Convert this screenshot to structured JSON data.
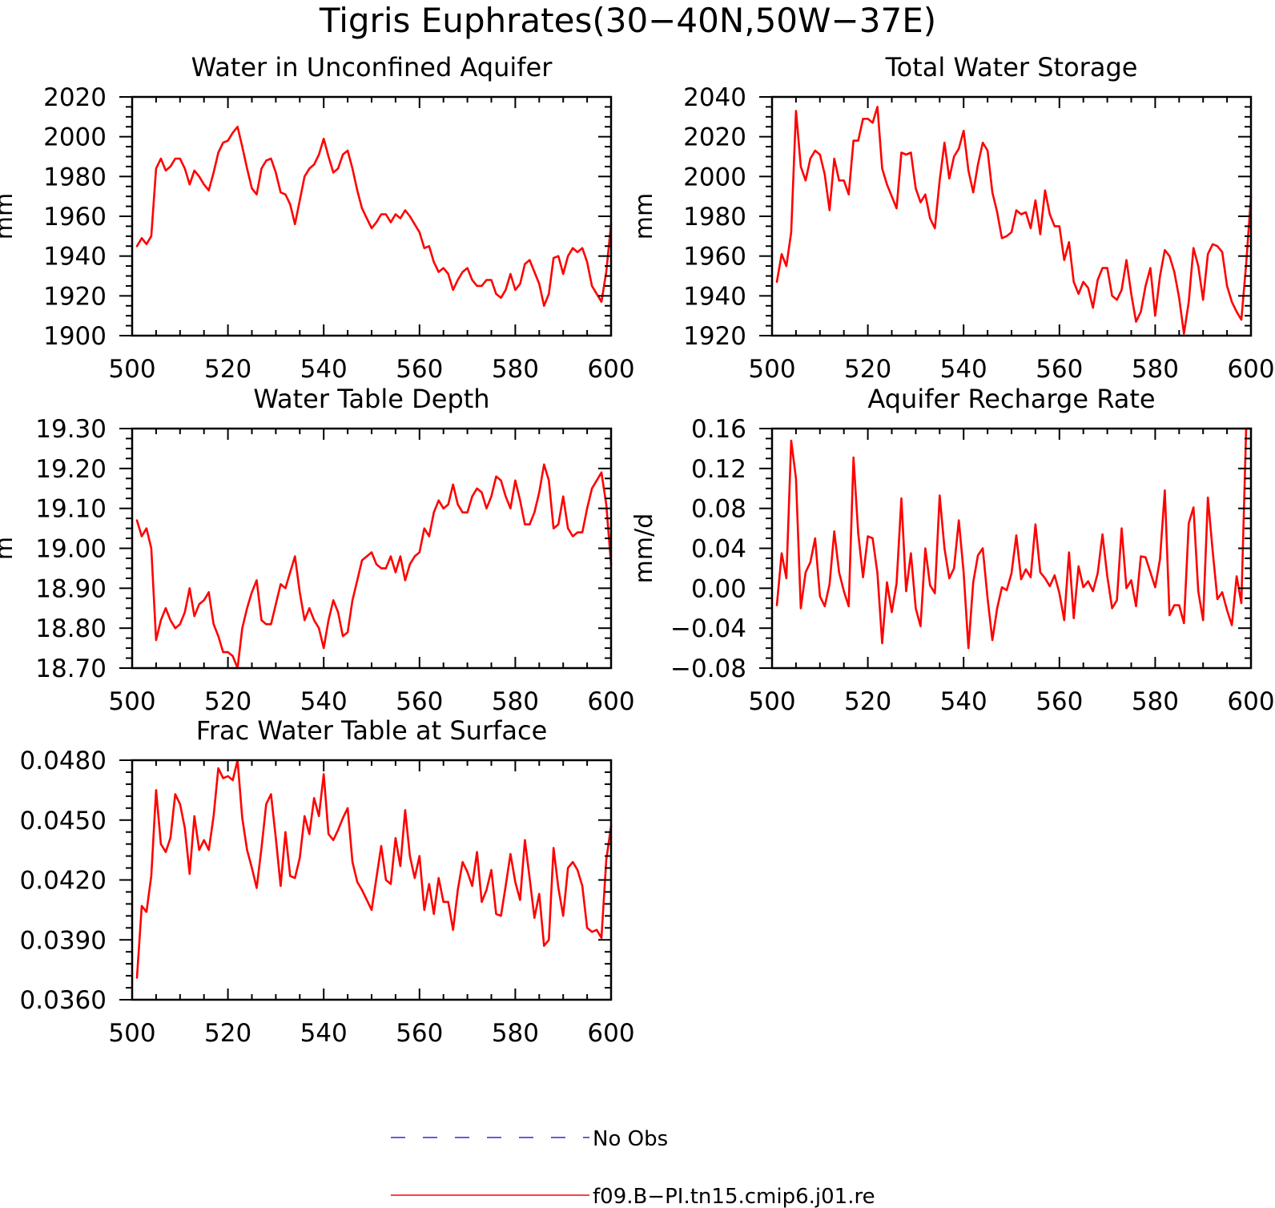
{
  "figure": {
    "title": "Tigris Euphrates(30−40N,50W−37E)"
  },
  "legend": {
    "placement": "bottom-center",
    "entries": [
      {
        "label": "No Obs",
        "color": "#2a2ad0",
        "style": "dashed"
      },
      {
        "label": "f09.B−PI.tn15.cmip6.j01.re",
        "color": "#ff0000",
        "style": "solid"
      }
    ]
  },
  "chart_data": [
    {
      "type": "line",
      "title": "Water in Unconfined Aquifer",
      "ylabel": "mm",
      "xlim": [
        500,
        600
      ],
      "ylim": [
        1900,
        2020
      ],
      "xticks": [
        500,
        520,
        540,
        560,
        580,
        600
      ],
      "xtick_labels": [
        "500",
        "520",
        "540",
        "560",
        "580",
        "600"
      ],
      "yticks": [
        1900,
        1920,
        1940,
        1960,
        1980,
        2000,
        2020
      ],
      "ytick_labels": [
        "1900",
        "1920",
        "1940",
        "1960",
        "1980",
        "2000",
        "2020"
      ],
      "yminor": 4,
      "color": "#ff0000",
      "x": [
        501,
        502,
        503,
        504,
        505,
        506,
        507,
        508,
        509,
        510,
        511,
        512,
        513,
        514,
        515,
        516,
        517,
        518,
        519,
        520,
        521,
        522,
        523,
        524,
        525,
        526,
        527,
        528,
        529,
        530,
        531,
        532,
        533,
        534,
        535,
        536,
        537,
        538,
        539,
        540,
        541,
        542,
        543,
        544,
        545,
        546,
        547,
        548,
        549,
        550,
        551,
        552,
        553,
        554,
        555,
        556,
        557,
        558,
        559,
        560,
        561,
        562,
        563,
        564,
        565,
        566,
        567,
        568,
        569,
        570,
        571,
        572,
        573,
        574,
        575,
        576,
        577,
        578,
        579,
        580,
        581,
        582,
        583,
        584,
        585,
        586,
        587,
        588,
        589,
        590,
        591,
        592,
        593,
        594,
        595,
        596,
        597,
        598,
        599,
        600
      ],
      "y": [
        1945,
        1949,
        1946,
        1950,
        1984,
        1989,
        1983,
        1985,
        1989,
        1989,
        1984,
        1976,
        1983,
        1980,
        1976,
        1973,
        1982,
        1992,
        1997,
        1998,
        2002,
        2005,
        1995,
        1984,
        1974,
        1971,
        1984,
        1988,
        1989,
        1982,
        1972,
        1971,
        1966,
        1956,
        1968,
        1980,
        1984,
        1986,
        1991,
        1999,
        1990,
        1982,
        1984,
        1991,
        1993,
        1984,
        1973,
        1964,
        1959,
        1954,
        1957,
        1961,
        1961,
        1957,
        1961,
        1959,
        1963,
        1960,
        1956,
        1952,
        1944,
        1945,
        1937,
        1932,
        1934,
        1931,
        1923,
        1928,
        1932,
        1934,
        1928,
        1925,
        1925,
        1928,
        1928,
        1921,
        1919,
        1923,
        1931,
        1923,
        1926,
        1936,
        1938,
        1932,
        1926,
        1915,
        1921,
        1939,
        1940,
        1931,
        1940,
        1944,
        1942,
        1944,
        1937,
        1925,
        1921,
        1917,
        1932,
        1956
      ]
    },
    {
      "type": "line",
      "title": "Total Water Storage",
      "ylabel": "mm",
      "xlim": [
        500,
        600
      ],
      "ylim": [
        1920,
        2040
      ],
      "xticks": [
        500,
        520,
        540,
        560,
        580,
        600
      ],
      "xtick_labels": [
        "500",
        "520",
        "540",
        "560",
        "580",
        "600"
      ],
      "yticks": [
        1920,
        1940,
        1960,
        1980,
        2000,
        2020,
        2040
      ],
      "ytick_labels": [
        "1920",
        "1940",
        "1960",
        "1980",
        "2000",
        "2020",
        "2040"
      ],
      "yminor": 4,
      "color": "#ff0000",
      "x": [
        501,
        502,
        503,
        504,
        505,
        506,
        507,
        508,
        509,
        510,
        511,
        512,
        513,
        514,
        515,
        516,
        517,
        518,
        519,
        520,
        521,
        522,
        523,
        524,
        525,
        526,
        527,
        528,
        529,
        530,
        531,
        532,
        533,
        534,
        535,
        536,
        537,
        538,
        539,
        540,
        541,
        542,
        543,
        544,
        545,
        546,
        547,
        548,
        549,
        550,
        551,
        552,
        553,
        554,
        555,
        556,
        557,
        558,
        559,
        560,
        561,
        562,
        563,
        564,
        565,
        566,
        567,
        568,
        569,
        570,
        571,
        572,
        573,
        574,
        575,
        576,
        577,
        578,
        579,
        580,
        581,
        582,
        583,
        584,
        585,
        586,
        587,
        588,
        589,
        590,
        591,
        592,
        593,
        594,
        595,
        596,
        597,
        598,
        599,
        600
      ],
      "y": [
        1947,
        1961,
        1955,
        1972,
        2033,
        2005,
        1998,
        2009,
        2013,
        2011,
        2001,
        1983,
        2009,
        1998,
        1998,
        1991,
        2018,
        2018,
        2029,
        2029,
        2027,
        2035,
        2004,
        1996,
        1990,
        1984,
        2012,
        2011,
        2012,
        1994,
        1987,
        1991,
        1979,
        1974,
        1998,
        2017,
        1999,
        2010,
        2014,
        2023,
        2003,
        1992,
        2006,
        2017,
        2013,
        1992,
        1982,
        1969,
        1970,
        1972,
        1983,
        1981,
        1982,
        1974,
        1988,
        1971,
        1993,
        1981,
        1975,
        1975,
        1958,
        1967,
        1947,
        1941,
        1947,
        1944,
        1934,
        1948,
        1954,
        1954,
        1940,
        1938,
        1943,
        1958,
        1941,
        1927,
        1932,
        1945,
        1954,
        1930,
        1950,
        1963,
        1960,
        1952,
        1939,
        1921,
        1937,
        1964,
        1955,
        1938,
        1961,
        1966,
        1965,
        1962,
        1945,
        1937,
        1932,
        1928,
        1956,
        1990
      ]
    },
    {
      "type": "line",
      "title": "Water Table Depth",
      "ylabel": "m",
      "xlim": [
        500,
        600
      ],
      "ylim": [
        18.7,
        19.3
      ],
      "xticks": [
        500,
        520,
        540,
        560,
        580,
        600
      ],
      "xtick_labels": [
        "500",
        "520",
        "540",
        "560",
        "580",
        "600"
      ],
      "yticks": [
        18.7,
        18.8,
        18.9,
        19.0,
        19.1,
        19.2,
        19.3
      ],
      "ytick_labels": [
        "18.70",
        "18.80",
        "18.90",
        "19.00",
        "19.10",
        "19.20",
        "19.30"
      ],
      "yminor": 4,
      "color": "#ff0000",
      "x": [
        501,
        502,
        503,
        504,
        505,
        506,
        507,
        508,
        509,
        510,
        511,
        512,
        513,
        514,
        515,
        516,
        517,
        518,
        519,
        520,
        521,
        522,
        523,
        524,
        525,
        526,
        527,
        528,
        529,
        530,
        531,
        532,
        533,
        534,
        535,
        536,
        537,
        538,
        539,
        540,
        541,
        542,
        543,
        544,
        545,
        546,
        547,
        548,
        549,
        550,
        551,
        552,
        553,
        554,
        555,
        556,
        557,
        558,
        559,
        560,
        561,
        562,
        563,
        564,
        565,
        566,
        567,
        568,
        569,
        570,
        571,
        572,
        573,
        574,
        575,
        576,
        577,
        578,
        579,
        580,
        581,
        582,
        583,
        584,
        585,
        586,
        587,
        588,
        589,
        590,
        591,
        592,
        593,
        594,
        595,
        596,
        597,
        598,
        599,
        600
      ],
      "y": [
        19.07,
        19.03,
        19.05,
        19.0,
        18.77,
        18.82,
        18.85,
        18.82,
        18.8,
        18.81,
        18.84,
        18.9,
        18.83,
        18.86,
        18.87,
        18.89,
        18.81,
        18.78,
        18.74,
        18.74,
        18.73,
        18.7,
        18.8,
        18.85,
        18.89,
        18.92,
        18.82,
        18.81,
        18.81,
        18.86,
        18.91,
        18.9,
        18.94,
        18.98,
        18.89,
        18.82,
        18.85,
        18.82,
        18.8,
        18.75,
        18.82,
        18.87,
        18.84,
        18.78,
        18.79,
        18.87,
        18.92,
        18.97,
        18.98,
        18.99,
        18.96,
        18.95,
        18.95,
        18.98,
        18.94,
        18.98,
        18.92,
        18.96,
        18.98,
        18.99,
        19.05,
        19.03,
        19.09,
        19.12,
        19.1,
        19.11,
        19.16,
        19.11,
        19.09,
        19.09,
        19.13,
        19.15,
        19.14,
        19.1,
        19.13,
        19.18,
        19.17,
        19.13,
        19.1,
        19.17,
        19.12,
        19.06,
        19.06,
        19.09,
        19.14,
        19.21,
        19.17,
        19.05,
        19.06,
        19.13,
        19.05,
        19.03,
        19.04,
        19.04,
        19.1,
        19.15,
        19.17,
        19.19,
        19.11,
        18.96
      ]
    },
    {
      "type": "line",
      "title": "Aquifer Recharge Rate",
      "ylabel": "mm/d",
      "xlim": [
        500,
        600
      ],
      "ylim": [
        -0.08,
        0.16
      ],
      "xticks": [
        500,
        520,
        540,
        560,
        580,
        600
      ],
      "xtick_labels": [
        "500",
        "520",
        "540",
        "560",
        "580",
        "600"
      ],
      "yticks": [
        -0.08,
        -0.04,
        0.0,
        0.04,
        0.08,
        0.12,
        0.16
      ],
      "ytick_labels": [
        "−0.08",
        "−0.04",
        "0.00",
        "0.04",
        "0.08",
        "0.12",
        "0.16"
      ],
      "yminor": 4,
      "color": "#ff0000",
      "x": [
        501,
        502,
        503,
        504,
        505,
        506,
        507,
        508,
        509,
        510,
        511,
        512,
        513,
        514,
        515,
        516,
        517,
        518,
        519,
        520,
        521,
        522,
        523,
        524,
        525,
        526,
        527,
        528,
        529,
        530,
        531,
        532,
        533,
        534,
        535,
        536,
        537,
        538,
        539,
        540,
        541,
        542,
        543,
        544,
        545,
        546,
        547,
        548,
        549,
        550,
        551,
        552,
        553,
        554,
        555,
        556,
        557,
        558,
        559,
        560,
        561,
        562,
        563,
        564,
        565,
        566,
        567,
        568,
        569,
        570,
        571,
        572,
        573,
        574,
        575,
        576,
        577,
        578,
        579,
        580,
        581,
        582,
        583,
        584,
        585,
        586,
        587,
        588,
        589,
        590,
        591,
        592,
        593,
        594,
        595,
        596,
        597,
        598,
        599,
        600
      ],
      "y": [
        -0.017,
        0.035,
        0.01,
        0.148,
        0.11,
        -0.02,
        0.016,
        0.026,
        0.05,
        -0.008,
        -0.018,
        0.004,
        0.057,
        0.016,
        -0.003,
        -0.018,
        0.131,
        0.055,
        0.011,
        0.052,
        0.05,
        0.015,
        -0.055,
        0.006,
        -0.024,
        0.005,
        0.09,
        -0.003,
        0.035,
        -0.02,
        -0.038,
        0.04,
        0.003,
        -0.005,
        0.093,
        0.04,
        0.01,
        0.02,
        0.068,
        0.016,
        -0.06,
        0.006,
        0.033,
        0.04,
        -0.01,
        -0.052,
        -0.02,
        0.001,
        -0.002,
        0.015,
        0.053,
        0.009,
        0.019,
        0.011,
        0.064,
        0.016,
        0.01,
        0.002,
        0.013,
        -0.005,
        -0.032,
        0.036,
        -0.03,
        0.022,
        0.001,
        0.007,
        -0.003,
        0.015,
        0.054,
        0.012,
        -0.02,
        -0.012,
        0.06,
        0.0,
        0.008,
        -0.018,
        0.032,
        0.031,
        0.016,
        0.001,
        0.029,
        0.098,
        -0.027,
        -0.017,
        -0.017,
        -0.035,
        0.065,
        0.081,
        -0.003,
        -0.032,
        0.091,
        0.037,
        -0.011,
        -0.004,
        -0.022,
        -0.037,
        0.012,
        -0.015,
        0.16,
        0.16
      ]
    },
    {
      "type": "line",
      "title": "Frac Water Table at Surface",
      "ylabel": "",
      "xlim": [
        500,
        600
      ],
      "ylim": [
        0.036,
        0.048
      ],
      "xticks": [
        500,
        520,
        540,
        560,
        580,
        600
      ],
      "xtick_labels": [
        "500",
        "520",
        "540",
        "560",
        "580",
        "600"
      ],
      "yticks": [
        0.036,
        0.039,
        0.042,
        0.045,
        0.048
      ],
      "ytick_labels": [
        "0.0360",
        "0.0390",
        "0.0420",
        "0.0450",
        "0.0480"
      ],
      "yminor": 5,
      "color": "#ff0000",
      "x": [
        501,
        502,
        503,
        504,
        505,
        506,
        507,
        508,
        509,
        510,
        511,
        512,
        513,
        514,
        515,
        516,
        517,
        518,
        519,
        520,
        521,
        522,
        523,
        524,
        525,
        526,
        527,
        528,
        529,
        530,
        531,
        532,
        533,
        534,
        535,
        536,
        537,
        538,
        539,
        540,
        541,
        542,
        543,
        544,
        545,
        546,
        547,
        548,
        549,
        550,
        551,
        552,
        553,
        554,
        555,
        556,
        557,
        558,
        559,
        560,
        561,
        562,
        563,
        564,
        565,
        566,
        567,
        568,
        569,
        570,
        571,
        572,
        573,
        574,
        575,
        576,
        577,
        578,
        579,
        580,
        581,
        582,
        583,
        584,
        585,
        586,
        587,
        588,
        589,
        590,
        591,
        592,
        593,
        594,
        595,
        596,
        597,
        598,
        599,
        600
      ],
      "y": [
        0.0371,
        0.0407,
        0.0404,
        0.0422,
        0.0465,
        0.0438,
        0.0434,
        0.0441,
        0.0463,
        0.0458,
        0.0446,
        0.0423,
        0.0452,
        0.0435,
        0.044,
        0.0435,
        0.0452,
        0.0476,
        0.0471,
        0.0472,
        0.047,
        0.048,
        0.0451,
        0.0435,
        0.0426,
        0.0416,
        0.0436,
        0.0458,
        0.0463,
        0.0441,
        0.0417,
        0.0444,
        0.0422,
        0.0421,
        0.0431,
        0.0452,
        0.0443,
        0.0461,
        0.0452,
        0.0473,
        0.0443,
        0.044,
        0.0445,
        0.0451,
        0.0456,
        0.0429,
        0.0419,
        0.0415,
        0.041,
        0.0405,
        0.0421,
        0.0437,
        0.042,
        0.0418,
        0.0441,
        0.0427,
        0.0455,
        0.0432,
        0.0421,
        0.0432,
        0.0405,
        0.0418,
        0.0403,
        0.0421,
        0.0409,
        0.0409,
        0.0395,
        0.0415,
        0.0429,
        0.0424,
        0.0417,
        0.0434,
        0.0409,
        0.0415,
        0.0425,
        0.0403,
        0.0402,
        0.0417,
        0.0433,
        0.0419,
        0.041,
        0.044,
        0.0421,
        0.0401,
        0.0413,
        0.0387,
        0.039,
        0.0436,
        0.0416,
        0.0402,
        0.0426,
        0.0429,
        0.0425,
        0.0417,
        0.0396,
        0.0394,
        0.0395,
        0.0391,
        0.043,
        0.0447
      ]
    }
  ]
}
